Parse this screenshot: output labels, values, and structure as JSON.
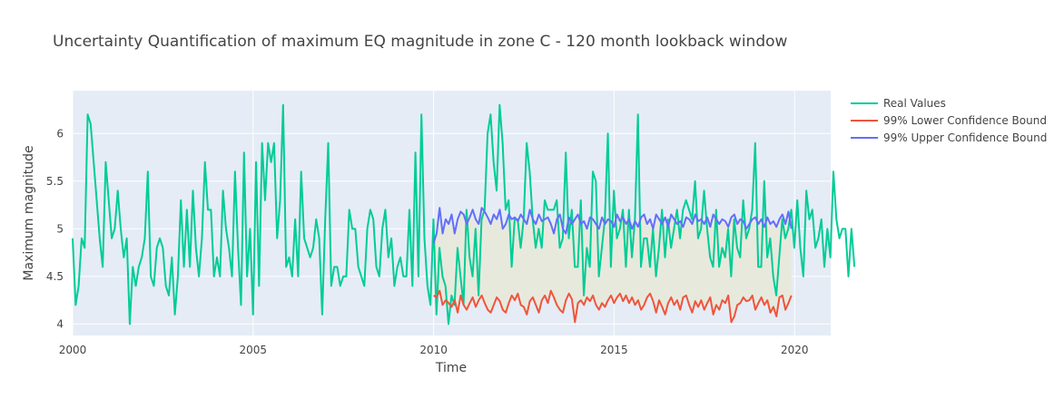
{
  "chart_data": {
    "type": "line",
    "title": "Uncertainty Quantification of maximum EQ magnitude in zone C - 120 month lookback window",
    "xlabel": "Time",
    "ylabel": "Maximum magnitude",
    "xlim": [
      2000,
      2021
    ],
    "ylim": [
      3.88,
      6.45
    ],
    "x_ticks": [
      "2000",
      "2005",
      "2010",
      "2015",
      "2020"
    ],
    "y_ticks": [
      "4",
      "4.5",
      "5",
      "5.5",
      "6"
    ],
    "grid": true,
    "legend_position": "right",
    "colors": {
      "plot_bg": "#E5ECF6",
      "grid": "#ffffff",
      "band_fill": "#E8E9DD",
      "text": "#444444"
    },
    "series": [
      {
        "name": "Real Values",
        "color": "#00CC96",
        "x_start": 2000,
        "step": 0.0833,
        "values": [
          4.9,
          4.2,
          4.4,
          4.9,
          4.8,
          6.2,
          6.1,
          5.7,
          5.3,
          4.9,
          4.6,
          5.7,
          5.3,
          4.9,
          5.0,
          5.4,
          5.0,
          4.7,
          4.9,
          4.0,
          4.6,
          4.4,
          4.6,
          4.7,
          4.9,
          5.6,
          4.5,
          4.4,
          4.8,
          4.9,
          4.8,
          4.4,
          4.3,
          4.7,
          4.1,
          4.5,
          5.3,
          4.6,
          5.2,
          4.6,
          5.4,
          4.8,
          4.5,
          4.9,
          5.7,
          5.2,
          5.2,
          4.5,
          4.7,
          4.5,
          5.4,
          5.0,
          4.8,
          4.5,
          5.6,
          4.8,
          4.2,
          5.8,
          4.5,
          5.0,
          4.1,
          5.7,
          4.4,
          5.9,
          5.3,
          5.9,
          5.7,
          5.9,
          4.9,
          5.3,
          6.3,
          4.6,
          4.7,
          4.5,
          5.1,
          4.5,
          5.6,
          4.9,
          4.8,
          4.7,
          4.8,
          5.1,
          4.9,
          4.1,
          5.1,
          5.9,
          4.4,
          4.6,
          4.6,
          4.4,
          4.5,
          4.5,
          5.2,
          5.0,
          5.0,
          4.6,
          4.5,
          4.4,
          5.0,
          5.2,
          5.1,
          4.6,
          4.5,
          5.0,
          5.2,
          4.7,
          4.9,
          4.4,
          4.6,
          4.7,
          4.5,
          4.5,
          5.2,
          4.4,
          5.8,
          4.5,
          6.2,
          4.9,
          4.4,
          4.2,
          5.1,
          4.1,
          4.8,
          4.5,
          4.4,
          4.0,
          4.3,
          4.2,
          4.8,
          4.5,
          4.2,
          5.2,
          4.7,
          4.5,
          5.0,
          4.3,
          5.1,
          5.2,
          6.0,
          6.2,
          5.7,
          5.4,
          6.3,
          5.9,
          5.2,
          5.3,
          4.6,
          5.1,
          5.1,
          4.8,
          5.1,
          5.9,
          5.6,
          5.1,
          4.8,
          5.0,
          4.8,
          5.3,
          5.2,
          5.2,
          5.2,
          5.3,
          4.8,
          4.9,
          5.8,
          4.9,
          5.2,
          4.6,
          4.6,
          5.3,
          4.3,
          4.8,
          4.6,
          5.6,
          5.5,
          4.5,
          4.8,
          5.1,
          6.0,
          4.6,
          5.4,
          4.9,
          5.0,
          5.2,
          4.6,
          5.2,
          4.7,
          5.1,
          6.2,
          4.6,
          4.9,
          4.9,
          4.6,
          5.0,
          4.5,
          4.8,
          5.2,
          4.7,
          5.1,
          4.8,
          5.0,
          5.2,
          4.9,
          5.2,
          5.3,
          5.2,
          5.1,
          5.5,
          4.9,
          5.0,
          5.4,
          5.0,
          4.7,
          4.6,
          5.2,
          4.6,
          4.8,
          4.7,
          5.0,
          4.5,
          5.1,
          4.8,
          4.7,
          5.3,
          4.9,
          5.0,
          5.2,
          5.9,
          4.6,
          4.6,
          5.5,
          4.7,
          4.9,
          4.5,
          4.3,
          4.7,
          5.1,
          4.9,
          5.0,
          5.2,
          4.8,
          5.3,
          4.8,
          4.5,
          5.4,
          5.1,
          5.2,
          4.8,
          4.9,
          5.1,
          4.6,
          5.0,
          4.7,
          5.6,
          5.1,
          4.9,
          5.0,
          5.0,
          4.5,
          5.0,
          4.6
        ]
      },
      {
        "name": "99% Lower Confidence Bound",
        "color": "#EF553B",
        "x_start": 2010,
        "step": 0.0833,
        "values": [
          4.3,
          4.28,
          4.35,
          4.2,
          4.25,
          4.22,
          4.18,
          4.25,
          4.12,
          4.3,
          4.2,
          4.15,
          4.22,
          4.28,
          4.18,
          4.25,
          4.3,
          4.22,
          4.15,
          4.12,
          4.2,
          4.28,
          4.24,
          4.15,
          4.12,
          4.22,
          4.3,
          4.25,
          4.32,
          4.2,
          4.18,
          4.1,
          4.24,
          4.28,
          4.2,
          4.12,
          4.25,
          4.3,
          4.22,
          4.35,
          4.28,
          4.2,
          4.15,
          4.12,
          4.25,
          4.32,
          4.26,
          4.02,
          4.22,
          4.25,
          4.2,
          4.28,
          4.24,
          4.3,
          4.2,
          4.15,
          4.22,
          4.18,
          4.25,
          4.3,
          4.22,
          4.28,
          4.32,
          4.24,
          4.3,
          4.22,
          4.28,
          4.2,
          4.25,
          4.15,
          4.2,
          4.28,
          4.32,
          4.24,
          4.12,
          4.25,
          4.18,
          4.1,
          4.22,
          4.28,
          4.2,
          4.25,
          4.15,
          4.28,
          4.3,
          4.2,
          4.12,
          4.24,
          4.18,
          4.25,
          4.15,
          4.22,
          4.28,
          4.1,
          4.2,
          4.15,
          4.25,
          4.22,
          4.3,
          4.02,
          4.08,
          4.2,
          4.22,
          4.28,
          4.24,
          4.25,
          4.3,
          4.15,
          4.22,
          4.28,
          4.2,
          4.25,
          4.12,
          4.18,
          4.08,
          4.28,
          4.3,
          4.15,
          4.22,
          4.3
        ]
      },
      {
        "name": "99% Upper Confidence Bound",
        "color": "#636EFA",
        "x_start": 2010,
        "step": 0.0833,
        "values": [
          4.85,
          4.95,
          5.22,
          4.95,
          5.1,
          5.05,
          5.15,
          4.95,
          5.1,
          5.18,
          5.15,
          5.05,
          5.12,
          5.2,
          5.1,
          5.05,
          5.22,
          5.18,
          5.12,
          5.05,
          5.15,
          5.1,
          5.2,
          5.0,
          5.05,
          5.15,
          5.1,
          5.12,
          5.08,
          5.15,
          5.1,
          5.05,
          5.2,
          5.1,
          5.05,
          5.15,
          5.08,
          5.1,
          5.12,
          5.05,
          4.95,
          5.1,
          5.15,
          5.0,
          4.95,
          5.12,
          5.05,
          5.1,
          5.15,
          5.05,
          5.08,
          5.0,
          5.12,
          5.1,
          5.05,
          5.0,
          5.12,
          5.05,
          5.1,
          5.08,
          5.02,
          5.15,
          5.08,
          5.12,
          5.05,
          5.1,
          5.0,
          5.08,
          5.02,
          5.12,
          5.15,
          5.05,
          5.1,
          5.0,
          5.15,
          5.1,
          5.05,
          5.12,
          5.02,
          5.15,
          5.1,
          5.05,
          5.08,
          5.02,
          5.12,
          5.1,
          5.05,
          5.15,
          5.08,
          5.1,
          5.05,
          5.12,
          5.02,
          5.15,
          5.1,
          5.05,
          5.1,
          5.08,
          5.02,
          5.12,
          5.15,
          5.05,
          5.1,
          5.08,
          5.0,
          5.05,
          5.1,
          5.12,
          5.05,
          5.1,
          5.02,
          5.12,
          5.05,
          5.08,
          5.02,
          5.1,
          5.15,
          5.05,
          5.18,
          5.0
        ]
      }
    ]
  }
}
